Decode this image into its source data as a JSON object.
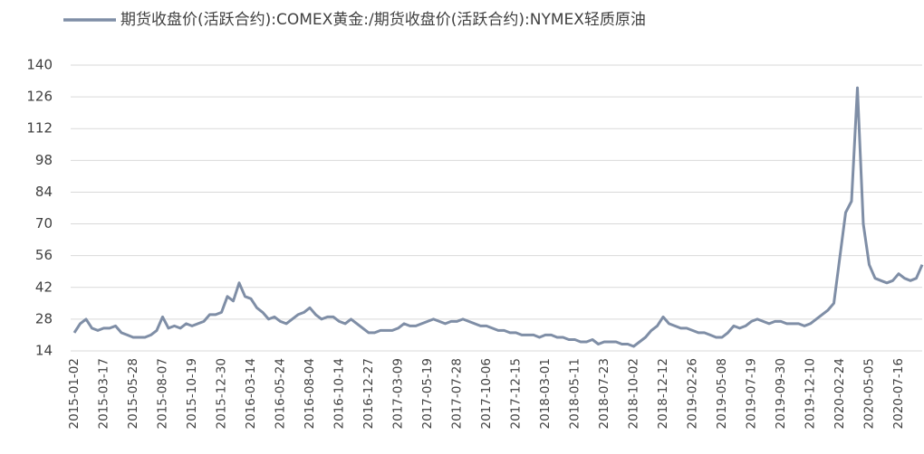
{
  "chart_data": {
    "type": "line",
    "series": [
      {
        "name": "期货收盘价(活跃合约):COMEX黄金:/期货收盘价(活跃合约):NYMEX轻质原油",
        "color": "#7f8ea6",
        "values": [
          22,
          26,
          28,
          24,
          23,
          24,
          24,
          25,
          22,
          21,
          20,
          20,
          20,
          21,
          23,
          29,
          24,
          25,
          24,
          26,
          25,
          26,
          27,
          30,
          30,
          31,
          38,
          36,
          44,
          38,
          37,
          33,
          31,
          28,
          29,
          27,
          26,
          28,
          30,
          31,
          33,
          30,
          28,
          29,
          29,
          27,
          26,
          28,
          26,
          24,
          22,
          22,
          23,
          23,
          23,
          24,
          26,
          25,
          25,
          26,
          27,
          28,
          27,
          26,
          27,
          27,
          28,
          27,
          26,
          25,
          25,
          24,
          23,
          23,
          22,
          22,
          21,
          21,
          21,
          20,
          21,
          21,
          20,
          20,
          19,
          19,
          18,
          18,
          19,
          17,
          18,
          18,
          18,
          17,
          17,
          16,
          18,
          20,
          23,
          25,
          29,
          26,
          25,
          24,
          24,
          23,
          22,
          22,
          21,
          20,
          20,
          22,
          25,
          24,
          25,
          27,
          28,
          27,
          26,
          27,
          27,
          26,
          26,
          26,
          25,
          26,
          28,
          30,
          32,
          35,
          55,
          75,
          80,
          130,
          70,
          52,
          46,
          45,
          44,
          45,
          48,
          46,
          45,
          46,
          52
        ]
      }
    ],
    "categories": [
      "2015-01-02",
      null,
      null,
      null,
      null,
      "2015-03-17",
      null,
      null,
      null,
      null,
      "2015-05-28",
      null,
      null,
      null,
      null,
      "2015-08-07",
      null,
      null,
      null,
      null,
      "2015-10-19",
      null,
      null,
      null,
      null,
      "2015-12-30",
      null,
      null,
      null,
      null,
      "2016-03-14",
      null,
      null,
      null,
      null,
      "2016-05-24",
      null,
      null,
      null,
      null,
      "2016-08-04",
      null,
      null,
      null,
      null,
      "2016-10-14",
      null,
      null,
      null,
      null,
      "2016-12-27",
      null,
      null,
      null,
      null,
      "2017-03-09",
      null,
      null,
      null,
      null,
      "2017-05-19",
      null,
      null,
      null,
      null,
      "2017-07-28",
      null,
      null,
      null,
      null,
      "2017-10-06",
      null,
      null,
      null,
      null,
      "2017-12-15",
      null,
      null,
      null,
      null,
      "2018-03-01",
      null,
      null,
      null,
      null,
      "2018-05-11",
      null,
      null,
      null,
      null,
      "2018-07-23",
      null,
      null,
      null,
      null,
      "2018-10-02",
      null,
      null,
      null,
      null,
      "2018-12-12",
      null,
      null,
      null,
      null,
      "2019-02-26",
      null,
      null,
      null,
      null,
      "2019-05-08",
      null,
      null,
      null,
      null,
      "2019-07-19",
      null,
      null,
      null,
      null,
      "2019-09-30",
      null,
      null,
      null,
      null,
      "2019-12-10",
      null,
      null,
      null,
      null,
      "2020-02-24",
      null,
      null,
      null,
      null,
      "2020-05-05",
      null,
      null,
      null,
      null,
      "2020-07-16",
      null,
      null,
      null,
      null
    ],
    "ylim": [
      14,
      140
    ],
    "yticks": [
      14,
      28,
      42,
      56,
      70,
      84,
      98,
      112,
      126,
      140
    ],
    "grid": true,
    "legend": "top"
  }
}
